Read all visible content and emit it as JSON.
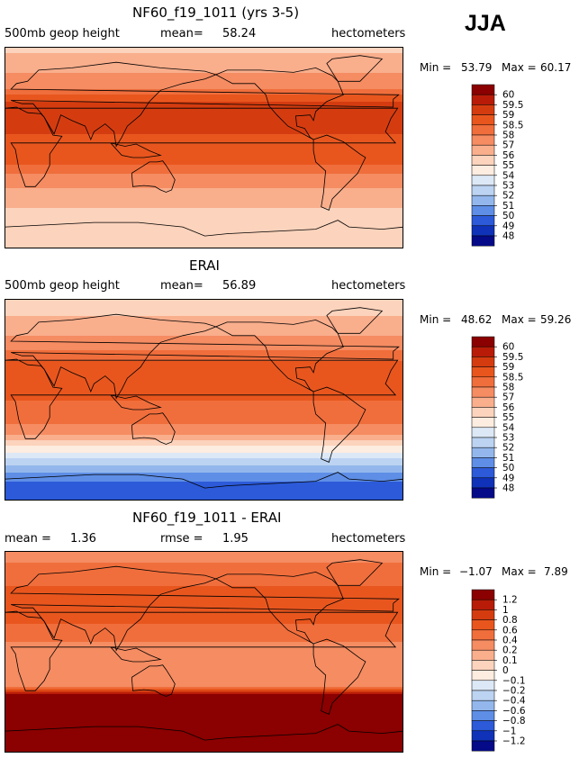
{
  "season": "JJA",
  "panels": [
    {
      "title": "NF60_f19_1011 (yrs 3-5)",
      "left_label": "500mb geop height",
      "mean_label": "mean=",
      "mean_value": "58.24",
      "units": "hectometers",
      "min_label": "Min =",
      "min_value": "53.79",
      "max_label": "Max =",
      "max_value": "60.17"
    },
    {
      "title": "ERAI",
      "left_label": "500mb geop height",
      "mean_label": "mean=",
      "mean_value": "56.89",
      "units": "hectometers",
      "min_label": "Min =",
      "min_value": "48.62",
      "max_label": "Max =",
      "max_value": "59.26"
    },
    {
      "title": "NF60_f19_1011 - ERAI",
      "left_label": "mean =",
      "left_value": "1.36",
      "mean_label": "rmse =",
      "mean_value": "1.95",
      "units": "hectometers",
      "min_label": "Min =",
      "min_value": "−1.07",
      "max_label": "Max =",
      "max_value": "7.89"
    }
  ],
  "chart_data": [
    {
      "type": "heatmap",
      "title": "NF60_f19_1011 (yrs 3-5)",
      "variable": "500mb geop height",
      "units": "hectometers",
      "mean": 58.24,
      "min": 53.79,
      "max": 60.17,
      "colorbar_labels": [
        "60",
        "59.5",
        "59",
        "58.5",
        "58",
        "57",
        "56",
        "55",
        "54",
        "53",
        "52",
        "51",
        "50",
        "49",
        "48"
      ],
      "colors": [
        "#8b0000",
        "#b81c08",
        "#d43c10",
        "#e8561e",
        "#f06e3c",
        "#f58c62",
        "#f9ae8c",
        "#fcd3bc",
        "#fdece0",
        "#dce8f6",
        "#bcd3f2",
        "#93b7ec",
        "#5e8ee6",
        "#2c5ad8",
        "#1032b8",
        "#040a88"
      ],
      "zonal_profile": {
        "lat": [
          90,
          80,
          70,
          60,
          50,
          40,
          30,
          20,
          10,
          0,
          -10,
          -20,
          -30,
          -40,
          -50,
          -60,
          -70,
          -80,
          -90
        ],
        "value": [
          55.8,
          56.2,
          56.8,
          57.5,
          58.3,
          59.1,
          59.5,
          59.2,
          58.9,
          58.8,
          58.7,
          58.2,
          57.4,
          56.6,
          56.1,
          55.7,
          55.3,
          55.2,
          55.0
        ]
      }
    },
    {
      "type": "heatmap",
      "title": "ERAI",
      "variable": "500mb geop height",
      "units": "hectometers",
      "mean": 56.89,
      "min": 48.62,
      "max": 59.26,
      "colorbar_labels": [
        "60",
        "59.5",
        "59",
        "58.5",
        "58",
        "57",
        "56",
        "55",
        "54",
        "53",
        "52",
        "51",
        "50",
        "49",
        "48"
      ],
      "colors": [
        "#8b0000",
        "#b81c08",
        "#d43c10",
        "#e8561e",
        "#f06e3c",
        "#f58c62",
        "#f9ae8c",
        "#fcd3bc",
        "#fdece0",
        "#dce8f6",
        "#bcd3f2",
        "#93b7ec",
        "#5e8ee6",
        "#2c5ad8",
        "#1032b8",
        "#040a88"
      ],
      "zonal_profile": {
        "lat": [
          90,
          80,
          70,
          60,
          50,
          40,
          30,
          20,
          10,
          0,
          -10,
          -20,
          -30,
          -40,
          -50,
          -60,
          -70,
          -80,
          -90
        ],
        "value": [
          55.4,
          55.8,
          56.3,
          56.9,
          57.6,
          58.3,
          58.8,
          58.7,
          58.5,
          58.5,
          58.4,
          58.1,
          57.0,
          55.1,
          53.3,
          51.7,
          50.2,
          49.3,
          49.0
        ]
      }
    },
    {
      "type": "heatmap",
      "title": "NF60_f19_1011 - ERAI",
      "variable": "difference",
      "units": "hectometers",
      "mean": 1.36,
      "rmse": 1.95,
      "min": -1.07,
      "max": 7.89,
      "colorbar_labels": [
        "1.2",
        "1",
        "0.8",
        "0.6",
        "0.4",
        "0.2",
        "0.1",
        "0",
        "−0.1",
        "−0.2",
        "−0.4",
        "−0.6",
        "−0.8",
        "−1",
        "−1.2"
      ],
      "colors": [
        "#8b0000",
        "#b81c08",
        "#d43c10",
        "#e8561e",
        "#f06e3c",
        "#f58c62",
        "#f9ae8c",
        "#fcd3bc",
        "#fdece0",
        "#dce8f6",
        "#bcd3f2",
        "#93b7ec",
        "#5e8ee6",
        "#2c5ad8",
        "#1032b8",
        "#040a88"
      ],
      "zonal_profile": {
        "lat": [
          90,
          80,
          70,
          60,
          50,
          40,
          30,
          20,
          10,
          0,
          -10,
          -20,
          -30,
          -40,
          -50,
          -60,
          -70,
          -80,
          -90
        ],
        "value": [
          0.3,
          0.4,
          0.5,
          0.6,
          0.7,
          0.8,
          0.7,
          0.5,
          0.4,
          0.3,
          0.3,
          0.2,
          0.4,
          1.5,
          2.8,
          4.0,
          5.1,
          5.9,
          6.0
        ]
      }
    }
  ]
}
